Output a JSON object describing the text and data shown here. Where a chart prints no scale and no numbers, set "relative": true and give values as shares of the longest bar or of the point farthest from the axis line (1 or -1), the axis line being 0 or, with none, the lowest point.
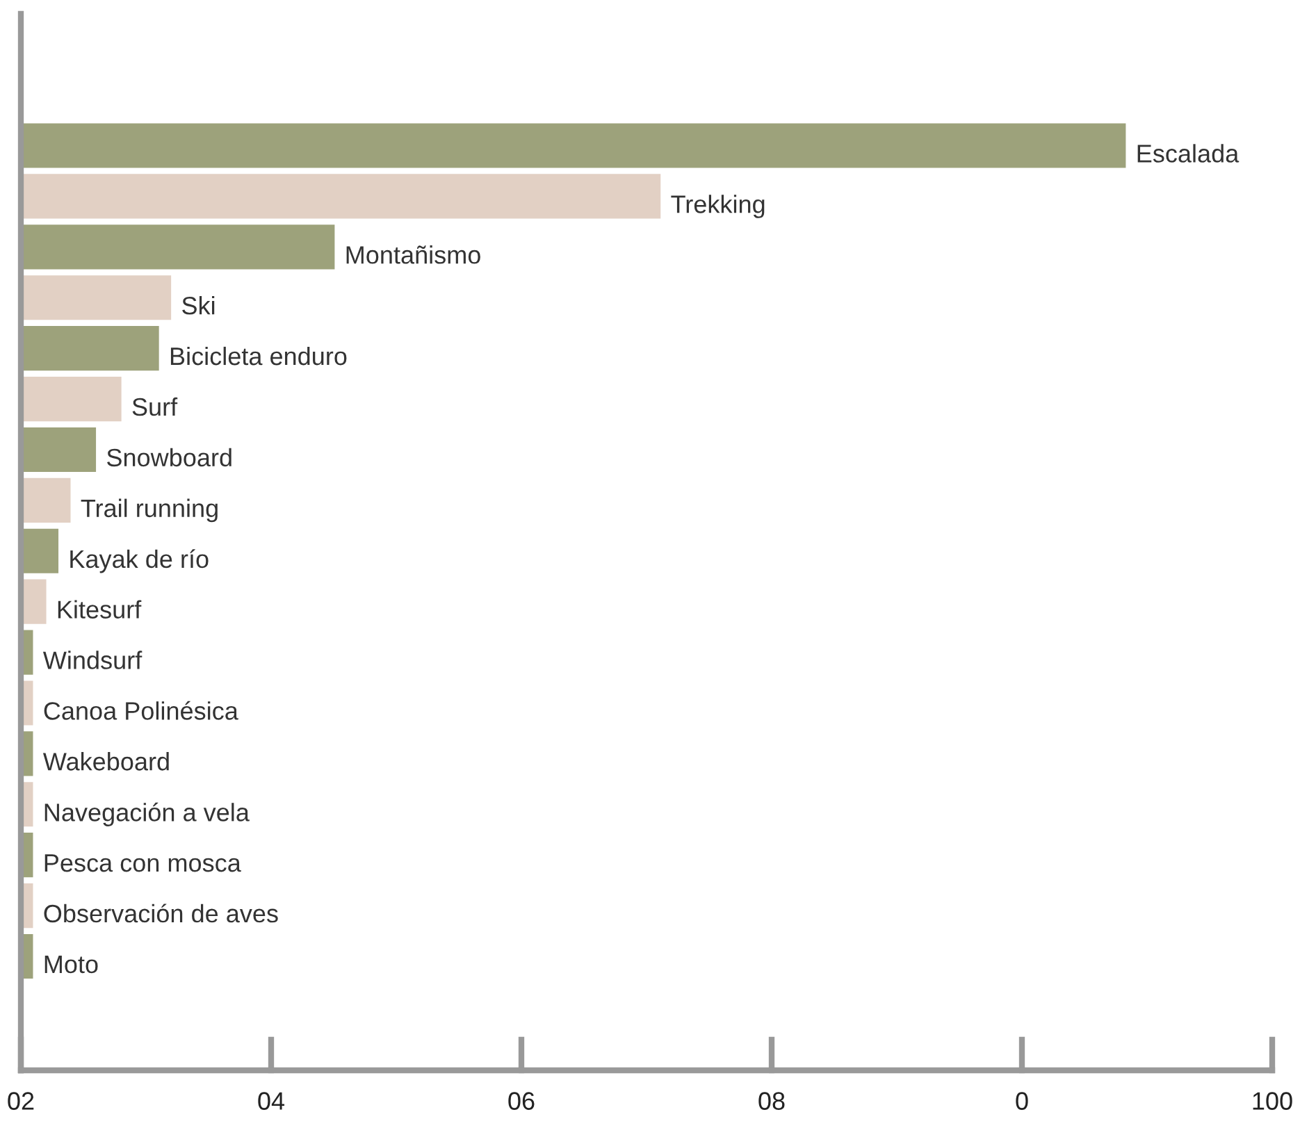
{
  "chart_data": {
    "type": "bar",
    "orientation": "horizontal",
    "relative": true,
    "categories": [
      "Escalada",
      "Trekking",
      "Montañismo",
      "Ski",
      "Bicicleta enduro",
      "Surf",
      "Snowboard",
      "Trail running",
      "Kayak de río",
      "Kitesurf",
      "Windsurf",
      "Canoa Polinésica",
      "Wakeboard",
      "Navegación a vela",
      "Pesca con mosca",
      "Observación de aves",
      "Moto"
    ],
    "values": [
      1,
      0.579,
      0.284,
      0.136,
      0.125,
      0.091,
      0.068,
      0.045,
      0.034,
      0.023,
      0.011,
      0.011,
      0.011,
      0.011,
      0.011,
      0.011,
      0.011
    ],
    "colors": [
      "#9da27b",
      "#e2d0c4",
      "#9da27b",
      "#e2d0c4",
      "#9da27b",
      "#e2d0c4",
      "#9da27b",
      "#e2d0c4",
      "#9da27b",
      "#e2d0c4",
      "#9da27b",
      "#e2d0c4",
      "#9da27b",
      "#e2d0c4",
      "#9da27b",
      "#e2d0c4",
      "#9da27b"
    ],
    "annotations": [
      "02",
      "04",
      "06",
      "08",
      "0",
      "100"
    ],
    "legend": false
  }
}
